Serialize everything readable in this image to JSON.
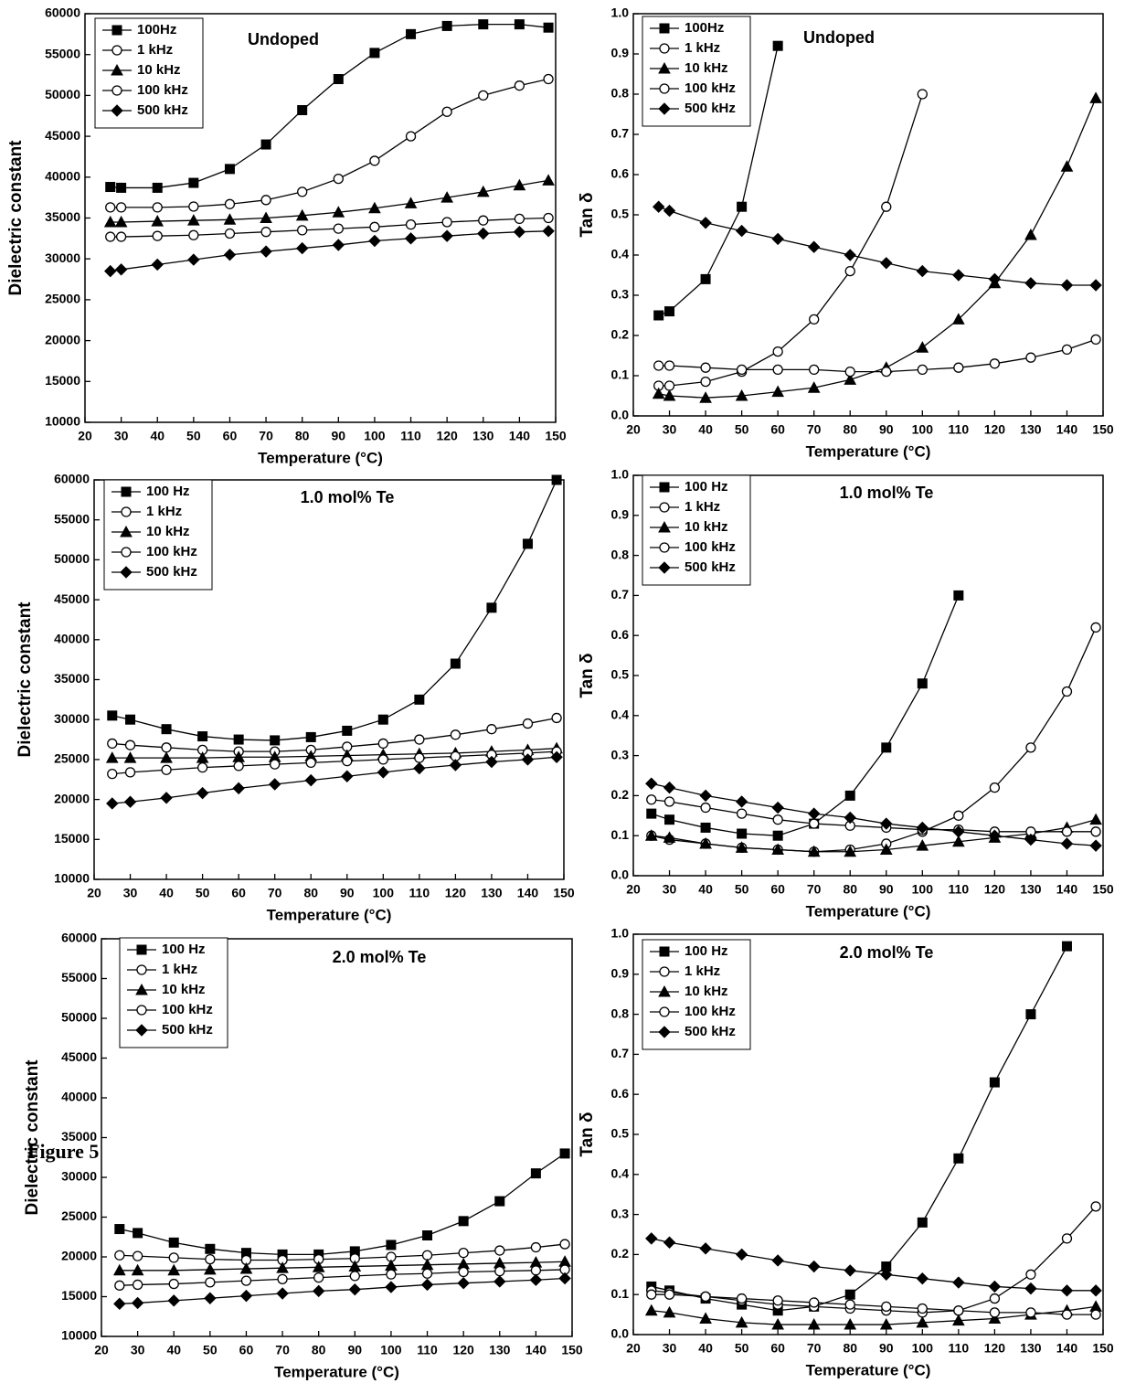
{
  "figure_label": "Figure 5",
  "chart_data": [
    {
      "type": "line",
      "title": "Undoped",
      "x_label": "Temperature (°C)",
      "y_label": "Dielectric constant",
      "x": [
        27,
        30,
        40,
        50,
        60,
        70,
        80,
        90,
        100,
        110,
        120,
        130,
        140,
        148
      ],
      "xlim": [
        20,
        150
      ],
      "xticks": [
        20,
        30,
        40,
        50,
        60,
        70,
        80,
        90,
        100,
        110,
        120,
        130,
        140,
        150
      ],
      "ylim": [
        10000,
        60000
      ],
      "yticks": [
        10000,
        15000,
        20000,
        25000,
        30000,
        35000,
        40000,
        45000,
        50000,
        55000,
        60000
      ],
      "legend": "upper left",
      "series": [
        {
          "name": "100Hz",
          "color": "#000000",
          "marker": "square",
          "values": [
            38800,
            38700,
            38700,
            39300,
            41000,
            44000,
            48200,
            52000,
            55200,
            57500,
            58500,
            58700,
            58700,
            58300
          ]
        },
        {
          "name": "1 kHz",
          "color": "#000000",
          "marker": "circle",
          "values": [
            36300,
            36300,
            36300,
            36400,
            36700,
            37200,
            38200,
            39800,
            42000,
            45000,
            48000,
            50000,
            51200,
            52000
          ]
        },
        {
          "name": "10 kHz",
          "color": "#000000",
          "marker": "triangle",
          "values": [
            34500,
            34500,
            34600,
            34700,
            34800,
            35000,
            35300,
            35700,
            36200,
            36800,
            37500,
            38200,
            39000,
            39600
          ]
        },
        {
          "name": "100 kHz",
          "color": "#000000",
          "marker": "circle",
          "values": [
            32700,
            32700,
            32800,
            32900,
            33100,
            33300,
            33500,
            33700,
            33900,
            34200,
            34500,
            34700,
            34900,
            35000
          ]
        },
        {
          "name": "500 kHz",
          "color": "#000000",
          "marker": "diamond",
          "values": [
            28500,
            28700,
            29300,
            29900,
            30500,
            30900,
            31300,
            31700,
            32200,
            32500,
            32800,
            33100,
            33300,
            33400
          ]
        }
      ]
    },
    {
      "type": "line",
      "title": "Undoped",
      "x_label": "Temperature (°C)",
      "y_label": "Tan δ",
      "x": [
        27,
        30,
        40,
        50,
        60,
        70,
        80,
        90,
        100,
        110,
        120,
        130,
        140,
        148
      ],
      "xlim": [
        20,
        150
      ],
      "xticks": [
        20,
        30,
        40,
        50,
        60,
        70,
        80,
        90,
        100,
        110,
        120,
        130,
        140,
        150
      ],
      "ylim": [
        0,
        1
      ],
      "yticks": [
        {
          "value": 0,
          "label": "0.0"
        },
        0.1,
        0.2,
        0.3,
        0.4,
        0.5,
        0.6,
        0.7,
        0.8,
        0.9,
        {
          "value": 1,
          "label": "1.0"
        }
      ],
      "legend": "upper left",
      "series": [
        {
          "name": "100Hz",
          "color": "#000000",
          "marker": "square",
          "values": [
            0.25,
            0.26,
            0.34,
            0.52,
            0.92,
            null,
            null,
            null,
            null,
            null,
            null,
            null,
            null,
            null
          ]
        },
        {
          "name": "1 kHz",
          "color": "#000000",
          "marker": "circle",
          "values": [
            0.075,
            0.075,
            0.085,
            0.11,
            0.16,
            0.24,
            0.36,
            0.52,
            0.8,
            null,
            null,
            null,
            null,
            null
          ]
        },
        {
          "name": "10 kHz",
          "color": "#000000",
          "marker": "triangle",
          "values": [
            0.055,
            0.05,
            0.045,
            0.05,
            0.06,
            0.07,
            0.09,
            0.12,
            0.17,
            0.24,
            0.33,
            0.45,
            0.62,
            0.79
          ]
        },
        {
          "name": "100 kHz",
          "color": "#000000",
          "marker": "circle",
          "values": [
            0.125,
            0.125,
            0.12,
            0.115,
            0.115,
            0.115,
            0.11,
            0.11,
            0.115,
            0.12,
            0.13,
            0.145,
            0.165,
            0.19
          ]
        },
        {
          "name": "500 kHz",
          "color": "#000000",
          "marker": "diamond",
          "values": [
            0.52,
            0.51,
            0.48,
            0.46,
            0.44,
            0.42,
            0.4,
            0.38,
            0.36,
            0.35,
            0.34,
            0.33,
            0.325,
            0.325
          ]
        }
      ]
    },
    {
      "type": "line",
      "title": "1.0 mol% Te",
      "x_label": "Temperature (°C)",
      "y_label": "Dielectric constant",
      "x": [
        25,
        30,
        40,
        50,
        60,
        70,
        80,
        90,
        100,
        110,
        120,
        130,
        140,
        148
      ],
      "xlim": [
        20,
        150
      ],
      "xticks": [
        20,
        30,
        40,
        50,
        60,
        70,
        80,
        90,
        100,
        110,
        120,
        130,
        140,
        150
      ],
      "ylim": [
        10000,
        60000
      ],
      "yticks": [
        10000,
        15000,
        20000,
        25000,
        30000,
        35000,
        40000,
        45000,
        50000,
        55000,
        60000
      ],
      "legend": "upper left",
      "series": [
        {
          "name": "100 Hz",
          "color": "#000000",
          "marker": "square",
          "values": [
            30500,
            30000,
            28800,
            27900,
            27500,
            27400,
            27800,
            28600,
            30000,
            32500,
            37000,
            44000,
            52000,
            60000
          ]
        },
        {
          "name": "1 kHz",
          "color": "#000000",
          "marker": "circle",
          "values": [
            27000,
            26800,
            26500,
            26200,
            26000,
            26000,
            26200,
            26600,
            27000,
            27500,
            28100,
            28800,
            29500,
            30200
          ]
        },
        {
          "name": "10 kHz",
          "color": "#000000",
          "marker": "triangle",
          "values": [
            25200,
            25200,
            25200,
            25200,
            25300,
            25300,
            25400,
            25500,
            25600,
            25700,
            25800,
            26000,
            26200,
            26400
          ]
        },
        {
          "name": "100 kHz",
          "color": "#000000",
          "marker": "circle",
          "values": [
            23200,
            23400,
            23700,
            24000,
            24200,
            24400,
            24600,
            24800,
            25000,
            25200,
            25400,
            25600,
            25800,
            26000
          ]
        },
        {
          "name": "500 kHz",
          "color": "#000000",
          "marker": "diamond",
          "values": [
            19500,
            19700,
            20200,
            20800,
            21400,
            21900,
            22400,
            22900,
            23400,
            23900,
            24300,
            24700,
            25000,
            25300
          ]
        }
      ]
    },
    {
      "type": "line",
      "title": "1.0 mol% Te",
      "x_label": "Temperature (°C)",
      "y_label": "Tan δ",
      "x": [
        25,
        30,
        40,
        50,
        60,
        70,
        80,
        90,
        100,
        110,
        120,
        130,
        140,
        148
      ],
      "xlim": [
        20,
        150
      ],
      "xticks": [
        20,
        30,
        40,
        50,
        60,
        70,
        80,
        90,
        100,
        110,
        120,
        130,
        140,
        150
      ],
      "ylim": [
        0,
        1
      ],
      "yticks": [
        {
          "value": 0,
          "label": "0.0"
        },
        0.1,
        0.2,
        0.3,
        0.4,
        0.5,
        0.6,
        0.7,
        0.8,
        0.9,
        {
          "value": 1,
          "label": "1.0"
        }
      ],
      "legend": "upper left",
      "series": [
        {
          "name": "100 Hz",
          "color": "#000000",
          "marker": "square",
          "values": [
            0.155,
            0.14,
            0.12,
            0.105,
            0.1,
            0.13,
            0.2,
            0.32,
            0.48,
            0.7,
            null,
            null,
            null,
            null
          ]
        },
        {
          "name": "1 kHz",
          "color": "#000000",
          "marker": "circle",
          "values": [
            0.1,
            0.09,
            0.08,
            0.07,
            0.065,
            0.06,
            0.065,
            0.08,
            0.11,
            0.15,
            0.22,
            0.32,
            0.46,
            0.62
          ]
        },
        {
          "name": "10 kHz",
          "color": "#000000",
          "marker": "triangle",
          "values": [
            0.1,
            0.095,
            0.08,
            0.07,
            0.065,
            0.06,
            0.06,
            0.065,
            0.075,
            0.085,
            0.095,
            0.105,
            0.12,
            0.14
          ]
        },
        {
          "name": "100 kHz",
          "color": "#000000",
          "marker": "circle",
          "values": [
            0.19,
            0.185,
            0.17,
            0.155,
            0.14,
            0.13,
            0.125,
            0.12,
            0.115,
            0.115,
            0.11,
            0.11,
            0.11,
            0.11
          ]
        },
        {
          "name": "500 kHz",
          "color": "#000000",
          "marker": "diamond",
          "values": [
            0.23,
            0.22,
            0.2,
            0.185,
            0.17,
            0.155,
            0.145,
            0.13,
            0.12,
            0.11,
            0.1,
            0.09,
            0.08,
            0.075
          ]
        }
      ]
    },
    {
      "type": "line",
      "title": "2.0 mol% Te",
      "x_label": "Temperature (°C)",
      "y_label": "Dielectric constant",
      "x": [
        25,
        30,
        40,
        50,
        60,
        70,
        80,
        90,
        100,
        110,
        120,
        130,
        140,
        148
      ],
      "xlim": [
        20,
        150
      ],
      "xticks": [
        20,
        30,
        40,
        50,
        60,
        70,
        80,
        90,
        100,
        110,
        120,
        130,
        140,
        150
      ],
      "ylim": [
        10000,
        60000
      ],
      "yticks": [
        10000,
        15000,
        20000,
        25000,
        30000,
        35000,
        40000,
        45000,
        50000,
        55000,
        60000
      ],
      "legend": "upper left",
      "series": [
        {
          "name": "100 Hz",
          "color": "#000000",
          "marker": "square",
          "values": [
            23500,
            23000,
            21800,
            21000,
            20500,
            20300,
            20300,
            20700,
            21500,
            22700,
            24500,
            27000,
            30500,
            33000
          ]
        },
        {
          "name": "1 kHz",
          "color": "#000000",
          "marker": "circle",
          "values": [
            20200,
            20100,
            19900,
            19700,
            19600,
            19600,
            19700,
            19800,
            20000,
            20200,
            20500,
            20800,
            21200,
            21600
          ]
        },
        {
          "name": "10 kHz",
          "color": "#000000",
          "marker": "triangle",
          "values": [
            18300,
            18300,
            18300,
            18400,
            18500,
            18600,
            18700,
            18800,
            18900,
            19000,
            19100,
            19200,
            19300,
            19400
          ]
        },
        {
          "name": "100 kHz",
          "color": "#000000",
          "marker": "circle",
          "values": [
            16400,
            16500,
            16600,
            16800,
            17000,
            17200,
            17400,
            17600,
            17800,
            17900,
            18100,
            18200,
            18300,
            18400
          ]
        },
        {
          "name": "500 kHz",
          "color": "#000000",
          "marker": "diamond",
          "values": [
            14100,
            14200,
            14500,
            14800,
            15100,
            15400,
            15700,
            15900,
            16200,
            16500,
            16700,
            16900,
            17100,
            17300
          ]
        }
      ]
    },
    {
      "type": "line",
      "title": "2.0 mol% Te",
      "x_label": "Temperature (°C)",
      "y_label": "Tan δ",
      "x": [
        25,
        30,
        40,
        50,
        60,
        70,
        80,
        90,
        100,
        110,
        120,
        130,
        140,
        148
      ],
      "xlim": [
        20,
        150
      ],
      "xticks": [
        20,
        30,
        40,
        50,
        60,
        70,
        80,
        90,
        100,
        110,
        120,
        130,
        140,
        150
      ],
      "ylim": [
        0,
        1
      ],
      "yticks": [
        {
          "value": 0,
          "label": "0.0"
        },
        0.1,
        0.2,
        0.3,
        0.4,
        0.5,
        0.6,
        0.7,
        0.8,
        0.9,
        {
          "value": 1,
          "label": "1.0"
        }
      ],
      "legend": "upper left",
      "series": [
        {
          "name": "100 Hz",
          "color": "#000000",
          "marker": "square",
          "values": [
            0.12,
            0.11,
            0.09,
            0.075,
            0.06,
            0.07,
            0.1,
            0.17,
            0.28,
            0.44,
            0.63,
            0.8,
            0.97,
            null
          ]
        },
        {
          "name": "1 kHz",
          "color": "#000000",
          "marker": "circle",
          "values": [
            0.11,
            0.105,
            0.095,
            0.085,
            0.075,
            0.07,
            0.065,
            0.06,
            0.055,
            0.06,
            0.09,
            0.15,
            0.24,
            0.32
          ]
        },
        {
          "name": "10 kHz",
          "color": "#000000",
          "marker": "triangle",
          "values": [
            0.06,
            0.055,
            0.04,
            0.03,
            0.025,
            0.025,
            0.025,
            0.025,
            0.03,
            0.035,
            0.04,
            0.05,
            0.06,
            0.07
          ]
        },
        {
          "name": "100 kHz",
          "color": "#000000",
          "marker": "circle",
          "values": [
            0.1,
            0.1,
            0.095,
            0.09,
            0.085,
            0.08,
            0.075,
            0.07,
            0.065,
            0.06,
            0.055,
            0.055,
            0.05,
            0.05
          ]
        },
        {
          "name": "500 kHz",
          "color": "#000000",
          "marker": "diamond",
          "values": [
            0.24,
            0.23,
            0.215,
            0.2,
            0.185,
            0.17,
            0.16,
            0.15,
            0.14,
            0.13,
            0.12,
            0.115,
            0.11,
            0.11
          ]
        }
      ]
    }
  ]
}
